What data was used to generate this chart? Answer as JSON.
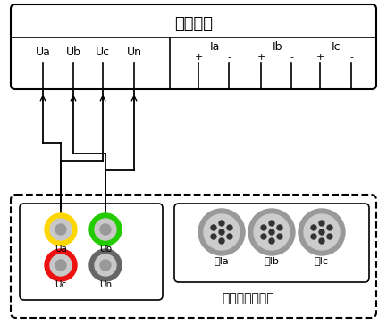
{
  "title_device": "被测设备",
  "title_analyzer": "电能质量分析仪",
  "voltage_labels": [
    "Ua",
    "Ub",
    "Uc",
    "Un"
  ],
  "current_labels": [
    "Ia",
    "Ib",
    "Ic"
  ],
  "clamp_labels": [
    "钳Ia",
    "钳Ib",
    "钳Ic"
  ],
  "connector_colors_outer": [
    "#FFD700",
    "#22CC00",
    "#EE1111",
    "#666666"
  ],
  "connector_colors_mid": [
    "#DDDDAA",
    "#AADDAA",
    "#DDAAAA",
    "#AAAAAA"
  ],
  "connector_labels": [
    "Ua",
    "Ub",
    "Uc",
    "Un"
  ],
  "bg_color": "#ffffff",
  "box_color": "#000000"
}
